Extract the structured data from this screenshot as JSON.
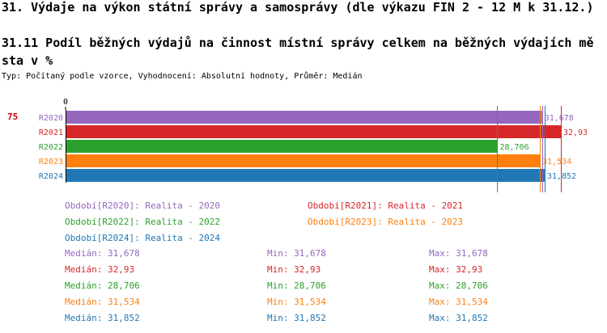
{
  "title": "31. Výdaje na výkon státní správy a samosprávy (dle výkazu FIN 2 - 12 M k 31.12.)",
  "subtitle": "31.11 Podíl běžných výdajů na činnost místní správy celkem na běžných výdajích města v %",
  "type_line": "Typ: Počítaný podle vzorce, Vyhodnocení: Absolutní hodnoty, Průměr: Medián",
  "side_label": "75",
  "colors": {
    "R2020": "#9467bd",
    "R2021": "#d62728",
    "R2022": "#2ca02c",
    "R2023": "#ff7f0e",
    "R2024": "#1f77b4"
  },
  "legend": [
    {
      "label": "Období[R2020]: Realita - 2020",
      "color": "#9467bd"
    },
    {
      "label": "Období[R2021]: Realita - 2021",
      "color": "#d62728"
    },
    {
      "label": "Období[R2022]: Realita - 2022",
      "color": "#2ca02c"
    },
    {
      "label": "Období[R2023]: Realita - 2023",
      "color": "#ff7f0e"
    },
    {
      "label": "Období[R2024]: Realita - 2024",
      "color": "#1f77b4"
    }
  ],
  "stats": [
    {
      "median": "Medián: 31,678",
      "min": "Min: 31,678",
      "max": "Max: 31,678",
      "color": "#9467bd"
    },
    {
      "median": "Medián: 32,93",
      "min": "Min: 32,93",
      "max": "Max: 32,93",
      "color": "#d62728"
    },
    {
      "median": "Medián: 28,706",
      "min": "Min: 28,706",
      "max": "Max: 28,706",
      "color": "#2ca02c"
    },
    {
      "median": "Medián: 31,534",
      "min": "Min: 31,534",
      "max": "Max: 31,534",
      "color": "#ff7f0e"
    },
    {
      "median": "Medián: 31,852",
      "min": "Min: 31,852",
      "max": "Max: 31,852",
      "color": "#1f77b4"
    }
  ],
  "chart_data": {
    "type": "bar",
    "orientation": "horizontal",
    "categories": [
      "R2020",
      "R2021",
      "R2022",
      "R2023",
      "R2024"
    ],
    "values": [
      31.678,
      32.93,
      28.706,
      31.534,
      31.852
    ],
    "value_labels": [
      "31,678",
      "32,93",
      "28,706",
      "31,534",
      "31,852"
    ],
    "x_tick_labels": [
      "0"
    ],
    "xlim": [
      0,
      33.9
    ],
    "reference_lines": [
      28.706,
      31.534,
      31.678,
      31.852,
      32.93
    ]
  }
}
